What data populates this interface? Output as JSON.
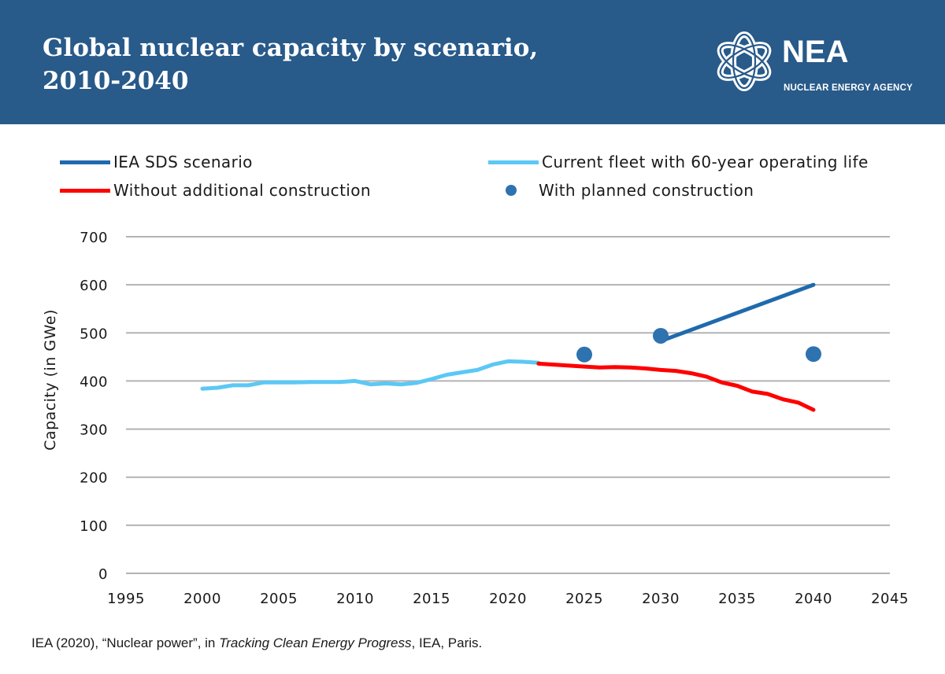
{
  "header": {
    "title_line1": "Global nuclear capacity by scenario,",
    "title_line2": "2010-2040",
    "logo_name": "NEA",
    "logo_sub": "NUCLEAR ENERGY AGENCY",
    "logo_icon": "nea-atom-logo-icon"
  },
  "colors": {
    "header_bg": "#285a8a",
    "sds": "#1f6aad",
    "fleet": "#5bc8f5",
    "without": "#ff0000",
    "planned": "#2e72b0",
    "grid": "#b3b3b3"
  },
  "source": {
    "pre": "IEA (2020), “Nuclear power”, in ",
    "italic": "Tracking Clean Energy Progress",
    "post": ", IEA, Paris."
  },
  "chart_data": {
    "type": "line",
    "title": "Global nuclear capacity by scenario, 2010-2040",
    "xlabel": "",
    "ylabel": "Capacity (in GWe)",
    "xlim": [
      1995,
      2045
    ],
    "ylim": [
      0,
      700
    ],
    "xticks": [
      1995,
      2000,
      2005,
      2010,
      2015,
      2020,
      2025,
      2030,
      2035,
      2040,
      2045
    ],
    "yticks": [
      0,
      100,
      200,
      300,
      400,
      500,
      600,
      700
    ],
    "grid": true,
    "legend_position": "top",
    "series": [
      {
        "name": "IEA SDS scenario",
        "kind": "line",
        "color": "#1f6aad",
        "x": [
          2030,
          2040
        ],
        "y": [
          483,
          600
        ]
      },
      {
        "name": "Current fleet with 60-year operating life",
        "kind": "line",
        "color": "#5bc8f5",
        "x": [
          2000,
          2001,
          2002,
          2003,
          2004,
          2005,
          2006,
          2007,
          2008,
          2009,
          2010,
          2011,
          2012,
          2013,
          2014,
          2015,
          2016,
          2017,
          2018,
          2019,
          2020,
          2021,
          2022
        ],
        "y": [
          384,
          386,
          391,
          391,
          397,
          397,
          397,
          398,
          398,
          398,
          400,
          393,
          395,
          393,
          396,
          404,
          413,
          418,
          423,
          434,
          441,
          440,
          438
        ]
      },
      {
        "name": "Without additional construction",
        "kind": "line",
        "color": "#ff0000",
        "x": [
          2022,
          2023,
          2024,
          2025,
          2026,
          2027,
          2028,
          2029,
          2030,
          2031,
          2032,
          2033,
          2034,
          2035,
          2036,
          2037,
          2038,
          2039,
          2040
        ],
        "y": [
          436,
          434,
          432,
          430,
          428,
          429,
          428,
          426,
          423,
          421,
          416,
          409,
          397,
          390,
          378,
          373,
          362,
          355,
          340
        ]
      },
      {
        "name": "With planned construction",
        "kind": "scatter",
        "color": "#2e72b0",
        "x": [
          2025,
          2030,
          2040
        ],
        "y": [
          455,
          494,
          456
        ]
      }
    ]
  }
}
